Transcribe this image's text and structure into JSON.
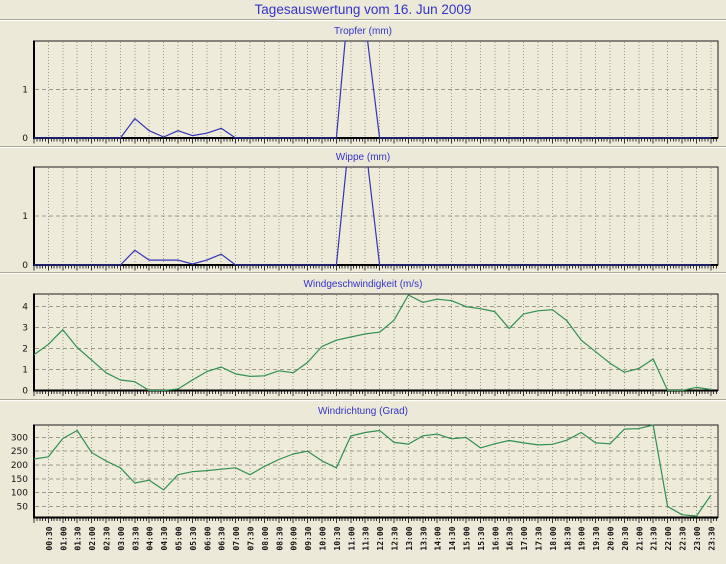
{
  "page_title": "Tagesauswertung vom 16. Jun 2009",
  "colors": {
    "page_bg": "#ece9d8",
    "plot_bg": "#eeebdb",
    "title_text": "#3333cc",
    "axis": "#1c1c1c",
    "grid": "#9b9888",
    "tick_label": "#141414",
    "separator_dark": "#aca899",
    "separator_light": "#ffffff",
    "rain_line": "#3434b8",
    "wind_line": "#2e9150"
  },
  "chart_data": {
    "type": "line",
    "x_start": "00:00",
    "x_step_minutes": 30,
    "x_domain_hours": [
      0,
      23.75
    ],
    "grid": "on",
    "legend": "none",
    "x_tick_labels": [
      "00:30",
      "01:00",
      "01:30",
      "02:00",
      "02:30",
      "03:00",
      "03:30",
      "04:00",
      "04:30",
      "05:00",
      "05:30",
      "06:00",
      "06:30",
      "07:00",
      "07:30",
      "08:00",
      "08:30",
      "09:00",
      "09:30",
      "10:00",
      "10:30",
      "11:00",
      "11:30",
      "12:00",
      "12:30",
      "13:00",
      "13:30",
      "14:00",
      "14:30",
      "15:00",
      "15:30",
      "16:00",
      "16:30",
      "17:00",
      "17:30",
      "18:00",
      "18:30",
      "19:00",
      "19:30",
      "20:00",
      "20:30",
      "21:00",
      "21:30",
      "22:00",
      "22:30",
      "23:00",
      "23:30"
    ],
    "charts": [
      {
        "title": "Tropfer (mm)",
        "ylabel": "mm",
        "color_key": "rain_line",
        "ylim": [
          0,
          2
        ],
        "yticks": [
          0,
          1
        ],
        "clip_above_ymax": true,
        "values": [
          0,
          0,
          0,
          0,
          0,
          0,
          0,
          0.4,
          0.15,
          0.02,
          0.15,
          0.05,
          0.1,
          0.2,
          0,
          0,
          0,
          0,
          0,
          0,
          0,
          0,
          3.3,
          2.4,
          0,
          0,
          0,
          0,
          0,
          0,
          0,
          0,
          0,
          0,
          0,
          0,
          0,
          0,
          0,
          0,
          0,
          0,
          0,
          0,
          0,
          0,
          0,
          0
        ]
      },
      {
        "title": "Wippe (mm)",
        "ylabel": "mm",
        "color_key": "rain_line",
        "ylim": [
          0,
          2
        ],
        "yticks": [
          0,
          1
        ],
        "clip_above_ymax": true,
        "values": [
          0,
          0,
          0,
          0,
          0,
          0,
          0,
          0.3,
          0.1,
          0.1,
          0.1,
          0.02,
          0.1,
          0.22,
          0,
          0,
          0,
          0,
          0,
          0,
          0,
          0,
          2.9,
          2.5,
          0,
          0,
          0,
          0,
          0,
          0,
          0,
          0,
          0,
          0,
          0,
          0,
          0,
          0,
          0,
          0,
          0,
          0,
          0,
          0,
          0,
          0,
          0,
          0
        ]
      },
      {
        "title": "Windgeschwindigkeit (m/s)",
        "ylabel": "m/s",
        "color_key": "wind_line",
        "ylim": [
          0,
          4.6
        ],
        "yticks": [
          0,
          1,
          2,
          3,
          4
        ],
        "clip_above_ymax": false,
        "values": [
          1.7,
          2.2,
          2.9,
          2.05,
          1.45,
          0.85,
          0.5,
          0.42,
          0,
          0,
          0.07,
          0.5,
          0.9,
          1.12,
          0.79,
          0.67,
          0.7,
          0.94,
          0.85,
          1.34,
          2.1,
          2.4,
          2.55,
          2.7,
          2.78,
          3.35,
          4.55,
          4.2,
          4.35,
          4.28,
          4.0,
          3.9,
          3.76,
          2.95,
          3.65,
          3.8,
          3.85,
          3.33,
          2.4,
          1.85,
          1.3,
          0.87,
          1.05,
          1.5,
          0,
          0,
          0.15,
          0.05
        ]
      },
      {
        "title": "Windrichtung (Grad)",
        "ylabel": "Grad",
        "color_key": "wind_line",
        "ylim": [
          10,
          345
        ],
        "yticks": [
          50,
          100,
          150,
          200,
          250,
          300
        ],
        "clip_above_ymax": false,
        "values": [
          222,
          230,
          296,
          325,
          245,
          215,
          190,
          135,
          145,
          110,
          165,
          176,
          180,
          185,
          190,
          165,
          195,
          220,
          240,
          250,
          215,
          190,
          305,
          318,
          325,
          282,
          276,
          306,
          312,
          295,
          300,
          262,
          277,
          289,
          280,
          273,
          275,
          290,
          318,
          280,
          277,
          330,
          332,
          345,
          50,
          20,
          15,
          90
        ]
      }
    ]
  }
}
